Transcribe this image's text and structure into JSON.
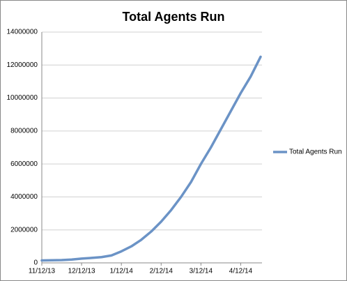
{
  "chart_data": {
    "type": "line",
    "title": "Total Agents Run",
    "categories": [
      "11/12/13",
      null,
      null,
      null,
      "12/12/13",
      null,
      null,
      null,
      "1/12/14",
      null,
      null,
      null,
      "2/12/14",
      null,
      null,
      null,
      "3/12/14",
      null,
      null,
      null,
      "4/12/14",
      null,
      null
    ],
    "series": [
      {
        "name": "Total Agents Run",
        "color": "#6b93c6",
        "values": [
          150000,
          160000,
          170000,
          200000,
          260000,
          300000,
          350000,
          450000,
          700000,
          1000000,
          1400000,
          1900000,
          2500000,
          3200000,
          4000000,
          4900000,
          6000000,
          7000000,
          8100000,
          9200000,
          10300000,
          11300000,
          12500000
        ]
      }
    ],
    "ylim": [
      0,
      14000000
    ],
    "yticks": [
      0,
      2000000,
      4000000,
      6000000,
      8000000,
      10000000,
      12000000,
      14000000
    ],
    "grid": true,
    "legend": "right"
  }
}
